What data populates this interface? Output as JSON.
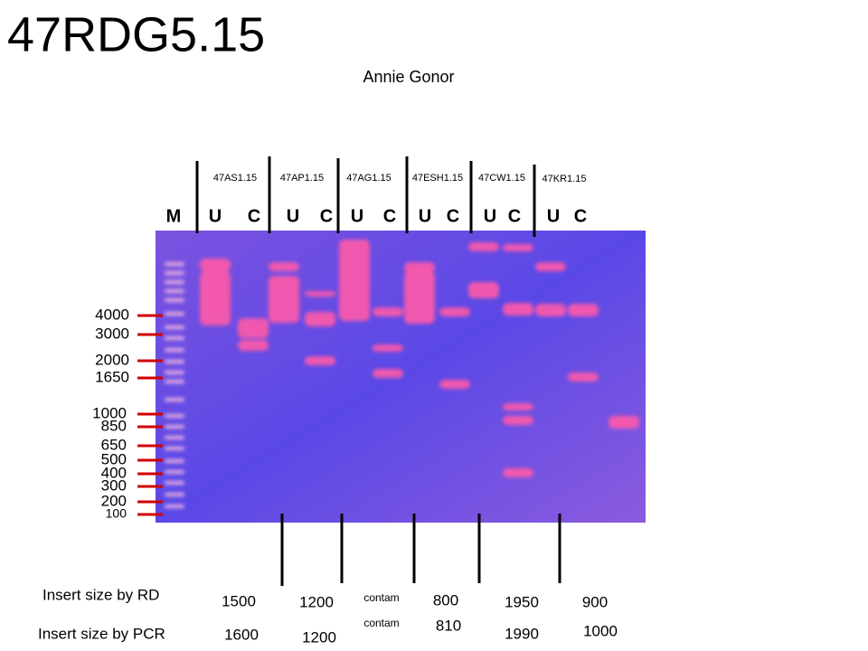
{
  "header": {
    "title": "47RDG5.15",
    "author": "Annie Gonor"
  },
  "samples": [
    "47AS1.15",
    "47AP1.15",
    "47AG1.15",
    "47ESH1.15",
    "47CW1.15",
    "47KR1.15"
  ],
  "lanes": [
    "M",
    "U",
    "C",
    "U",
    "C",
    "U",
    "C",
    "U",
    "C",
    "U",
    "C",
    "U",
    "C"
  ],
  "marker_sizes": [
    "4000",
    "3000",
    "2000",
    "1650",
    "1000",
    "850",
    "650",
    "500",
    "400",
    "300",
    "200",
    "100"
  ],
  "insert_sizes": {
    "rd_label": "Insert size by RD",
    "rd": [
      "1500",
      "1200",
      "contam",
      "800",
      "1950",
      "900"
    ],
    "pcr_label": "Insert size by PCR",
    "pcr": [
      "1600",
      "1200",
      "contam",
      "810",
      "1990",
      "1000"
    ]
  }
}
